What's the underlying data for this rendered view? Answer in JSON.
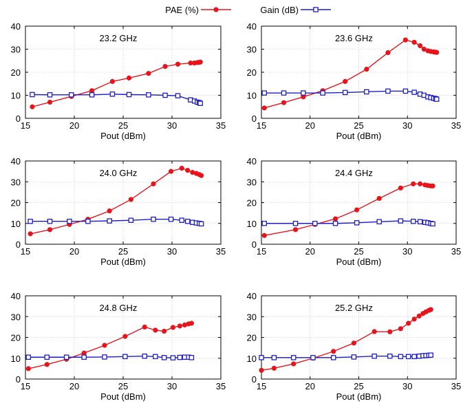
{
  "legend": {
    "position": "top-center",
    "entries": [
      {
        "name": "PAE (%)",
        "color": "#e8141b",
        "marker": "circle"
      },
      {
        "name": "Gain (dB)",
        "color": "#1c1cc8",
        "marker": "square"
      }
    ]
  },
  "chart_data": [
    {
      "type": "line",
      "title": "23.2 GHz",
      "xlabel": "Pout (dBm)",
      "ylabel": "",
      "xlim": [
        15,
        35
      ],
      "ylim": [
        0,
        40
      ],
      "xticks": [
        15,
        20,
        25,
        30,
        35
      ],
      "yticks": [
        0,
        10,
        20,
        30,
        40
      ],
      "grid": true,
      "series": [
        {
          "name": "PAE (%)",
          "x": [
            15.7,
            17.5,
            19.7,
            21.8,
            23.9,
            25.6,
            27.6,
            29.3,
            30.6,
            31.9,
            32.3,
            32.6,
            32.8,
            32.9
          ],
          "y": [
            5.0,
            7.0,
            9.5,
            12.0,
            16.0,
            17.5,
            19.5,
            22.5,
            23.5,
            24.0,
            24.0,
            24.2,
            24.3,
            24.4
          ]
        },
        {
          "name": "Gain (dB)",
          "x": [
            15.7,
            17.5,
            19.7,
            21.8,
            23.9,
            25.6,
            27.6,
            29.3,
            30.6,
            31.9,
            32.3,
            32.6,
            32.8,
            32.9
          ],
          "y": [
            10.3,
            10.2,
            10.2,
            10.2,
            10.5,
            10.3,
            10.2,
            10.0,
            9.8,
            8.0,
            7.5,
            7.0,
            6.8,
            6.5
          ]
        }
      ]
    },
    {
      "type": "line",
      "title": "23.6 GHz",
      "xlabel": "Pout (dBm)",
      "ylabel": "",
      "xlim": [
        15,
        35
      ],
      "ylim": [
        0,
        40
      ],
      "xticks": [
        15,
        20,
        25,
        30,
        35
      ],
      "yticks": [
        0,
        10,
        20,
        30,
        40
      ],
      "grid": true,
      "series": [
        {
          "name": "PAE (%)",
          "x": [
            15.3,
            17.3,
            19.3,
            21.3,
            23.6,
            25.8,
            28.0,
            29.8,
            30.7,
            31.3,
            31.7,
            32.1,
            32.4,
            32.7,
            32.9,
            33.0
          ],
          "y": [
            4.5,
            6.8,
            9.3,
            12.0,
            16.0,
            21.3,
            28.5,
            34.0,
            33.0,
            31.5,
            30.0,
            29.3,
            29.0,
            28.8,
            28.7,
            28.6
          ]
        },
        {
          "name": "Gain (dB)",
          "x": [
            15.3,
            17.3,
            19.3,
            21.3,
            23.6,
            25.8,
            28.0,
            29.8,
            30.7,
            31.3,
            31.7,
            32.1,
            32.4,
            32.7,
            32.9,
            33.0
          ],
          "y": [
            11.0,
            11.0,
            11.0,
            11.0,
            11.2,
            11.5,
            11.8,
            11.8,
            11.3,
            10.5,
            10.0,
            9.3,
            9.0,
            8.7,
            8.5,
            8.3
          ]
        }
      ]
    },
    {
      "type": "line",
      "title": "24.0 GHz",
      "xlabel": "Pout (dBm)",
      "ylabel": "",
      "xlim": [
        15,
        35
      ],
      "ylim": [
        0,
        40
      ],
      "xticks": [
        15,
        20,
        25,
        30,
        35
      ],
      "yticks": [
        0,
        10,
        20,
        30,
        40
      ],
      "grid": true,
      "series": [
        {
          "name": "PAE (%)",
          "x": [
            15.5,
            17.5,
            19.5,
            21.4,
            23.6,
            25.8,
            28.1,
            29.9,
            31.0,
            31.6,
            32.1,
            32.5,
            32.8,
            33.0
          ],
          "y": [
            5.0,
            7.0,
            9.5,
            12.0,
            16.0,
            21.5,
            29.0,
            35.0,
            36.5,
            35.5,
            34.5,
            34.0,
            33.5,
            33.0
          ]
        },
        {
          "name": "Gain (dB)",
          "x": [
            15.5,
            17.5,
            19.5,
            21.4,
            23.6,
            25.8,
            28.1,
            29.9,
            31.0,
            31.6,
            32.1,
            32.5,
            32.8,
            33.0
          ],
          "y": [
            11.0,
            11.0,
            11.0,
            11.0,
            11.2,
            11.5,
            12.0,
            12.0,
            11.5,
            11.0,
            10.5,
            10.2,
            10.0,
            9.8
          ]
        }
      ]
    },
    {
      "type": "line",
      "title": "24.4 GHz",
      "xlabel": "Pout (dBm)",
      "ylabel": "",
      "xlim": [
        15,
        35
      ],
      "ylim": [
        0,
        40
      ],
      "xticks": [
        15,
        20,
        25,
        30,
        35
      ],
      "yticks": [
        0,
        10,
        20,
        30,
        40
      ],
      "grid": true,
      "series": [
        {
          "name": "PAE (%)",
          "x": [
            15.3,
            18.5,
            20.5,
            22.6,
            24.8,
            27.1,
            29.3,
            30.6,
            31.3,
            31.8,
            32.1,
            32.4,
            32.6
          ],
          "y": [
            4.2,
            7.0,
            9.5,
            12.2,
            16.5,
            22.0,
            27.0,
            29.0,
            29.0,
            28.5,
            28.2,
            28.0,
            28.0
          ]
        },
        {
          "name": "Gain (dB)",
          "x": [
            15.3,
            18.5,
            20.5,
            22.6,
            24.8,
            27.1,
            29.3,
            30.6,
            31.3,
            31.8,
            32.1,
            32.4,
            32.6
          ],
          "y": [
            10.0,
            10.0,
            10.0,
            10.0,
            10.3,
            10.8,
            11.2,
            11.0,
            10.8,
            10.5,
            10.3,
            10.0,
            9.8
          ]
        }
      ]
    },
    {
      "type": "line",
      "title": "24.8 GHz",
      "xlabel": "Pout (dBm)",
      "ylabel": "",
      "xlim": [
        15,
        35
      ],
      "ylim": [
        0,
        40
      ],
      "xticks": [
        15,
        20,
        25,
        30,
        35
      ],
      "yticks": [
        0,
        10,
        20,
        30,
        40
      ],
      "grid": true,
      "series": [
        {
          "name": "PAE (%)",
          "x": [
            15.3,
            17.2,
            19.2,
            21.0,
            23.1,
            25.2,
            27.2,
            28.3,
            29.2,
            30.1,
            30.8,
            31.3,
            31.7,
            32.0
          ],
          "y": [
            5.0,
            7.0,
            9.5,
            12.5,
            16.2,
            20.5,
            25.0,
            23.5,
            23.0,
            24.8,
            25.5,
            26.0,
            26.5,
            26.8
          ]
        },
        {
          "name": "Gain (dB)",
          "x": [
            15.3,
            17.2,
            19.2,
            21.0,
            23.1,
            25.2,
            27.2,
            28.3,
            29.2,
            30.1,
            30.8,
            31.3,
            31.7,
            32.0
          ],
          "y": [
            10.5,
            10.5,
            10.5,
            10.5,
            10.6,
            10.8,
            11.0,
            10.8,
            10.3,
            10.2,
            10.4,
            10.5,
            10.5,
            10.3
          ]
        }
      ]
    },
    {
      "type": "line",
      "title": "25.2 GHz",
      "xlabel": "Pout (dBm)",
      "ylabel": "",
      "xlim": [
        15,
        35
      ],
      "ylim": [
        0,
        40
      ],
      "xticks": [
        15,
        20,
        25,
        30,
        35
      ],
      "yticks": [
        0,
        10,
        20,
        30,
        40
      ],
      "grid": true,
      "series": [
        {
          "name": "PAE (%)",
          "x": [
            15.0,
            16.3,
            18.3,
            20.3,
            22.4,
            24.5,
            26.6,
            28.2,
            29.3,
            30.1,
            30.7,
            31.2,
            31.6,
            31.9,
            32.2,
            32.4
          ],
          "y": [
            4.2,
            5.2,
            7.3,
            10.0,
            13.3,
            17.3,
            22.8,
            22.7,
            24.2,
            26.8,
            28.8,
            30.3,
            31.5,
            32.3,
            33.0,
            33.4
          ]
        },
        {
          "name": "Gain (dB)",
          "x": [
            15.0,
            16.3,
            18.3,
            20.3,
            22.4,
            24.5,
            26.6,
            28.2,
            29.3,
            30.1,
            30.7,
            31.2,
            31.6,
            31.9,
            32.2,
            32.4
          ],
          "y": [
            10.3,
            10.3,
            10.3,
            10.3,
            10.3,
            10.6,
            11.0,
            11.0,
            10.8,
            10.8,
            10.8,
            11.0,
            11.2,
            11.3,
            11.4,
            11.5
          ]
        }
      ]
    }
  ]
}
